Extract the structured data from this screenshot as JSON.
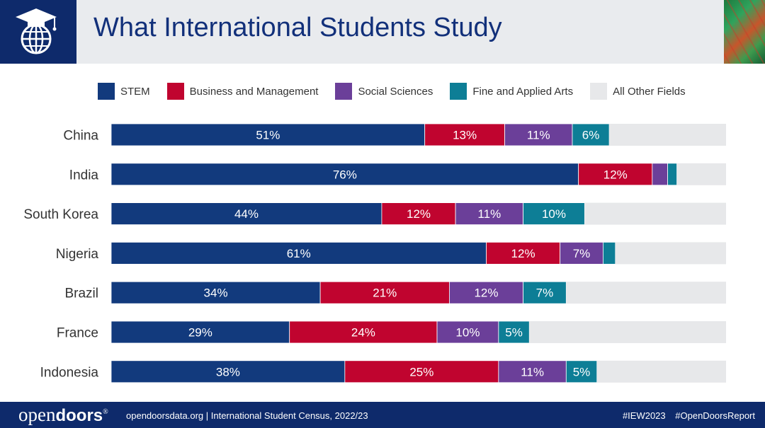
{
  "header": {
    "title": "What International Students Study",
    "logo_icon": "graduation-globe-icon"
  },
  "colors": {
    "stem": "#123a7d",
    "business": "#c0042f",
    "social": "#6b3f99",
    "arts": "#0d7e96",
    "other": "#e7e8ea",
    "header_bg": "#e9ebee",
    "navy": "#0e2a6b"
  },
  "chart_data": {
    "type": "bar",
    "orientation": "horizontal",
    "stacked": true,
    "categories": [
      "China",
      "India",
      "South Korea",
      "Nigeria",
      "Brazil",
      "France",
      "Indonesia"
    ],
    "series": [
      {
        "name": "STEM",
        "values": [
          51,
          76,
          44,
          61,
          34,
          29,
          38
        ],
        "labels": [
          "51%",
          "76%",
          "44%",
          "61%",
          "34%",
          "29%",
          "38%"
        ]
      },
      {
        "name": "Business and Management",
        "values": [
          13,
          12,
          12,
          12,
          21,
          24,
          25
        ],
        "labels": [
          "13%",
          "12%",
          "12%",
          "12%",
          "21%",
          "24%",
          "25%"
        ]
      },
      {
        "name": "Social Sciences",
        "values": [
          11,
          2.5,
          11,
          7,
          12,
          10,
          11
        ],
        "labels": [
          "11%",
          "",
          "11%",
          "7%",
          "12%",
          "10%",
          "11%"
        ]
      },
      {
        "name": "Fine and Applied Arts",
        "values": [
          6,
          1.5,
          10,
          2,
          7,
          5,
          5
        ],
        "labels": [
          "6%",
          "",
          "10%",
          "",
          "7%",
          "5%",
          "5%"
        ]
      },
      {
        "name": "All Other Fields",
        "values": [
          19,
          8,
          23,
          18,
          26,
          32,
          21
        ],
        "labels": [
          "",
          "",
          "",
          "",
          "",
          "",
          ""
        ]
      }
    ],
    "xlim": [
      0,
      100
    ],
    "grid": false,
    "legend_position": "top"
  },
  "footer": {
    "brand_light": "open",
    "brand_bold": "doors",
    "brand_mark": "®",
    "source": "opendoorsdata.org  |  International Student Census, 2022/23",
    "tags": [
      "#IEW2023",
      "#OpenDoorsReport"
    ]
  }
}
